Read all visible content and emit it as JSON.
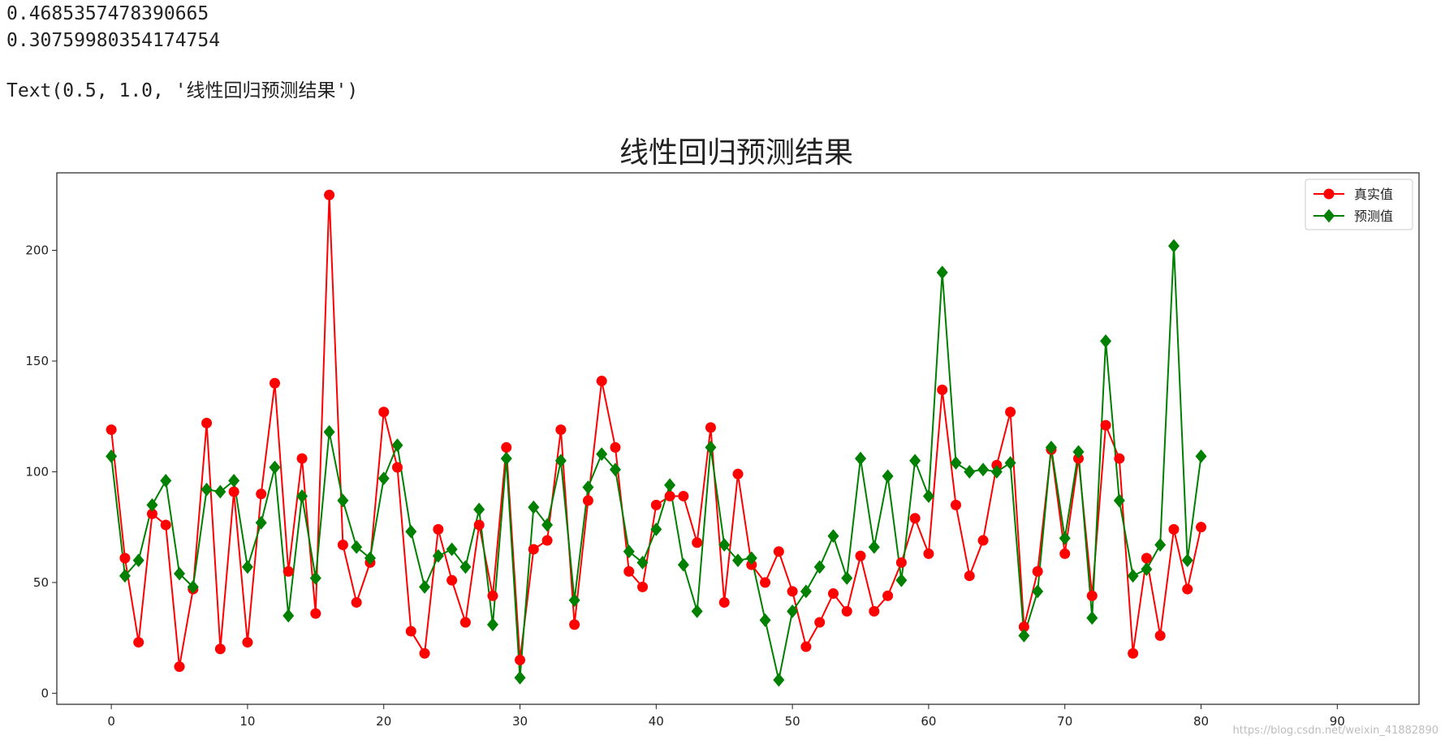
{
  "output": {
    "line1": "0.4685357478390665",
    "line2": "0.30759980354174754",
    "line3": "Text(0.5, 1.0, '线性回归预测结果')"
  },
  "watermark": "https://blog.csdn.net/weixin_41882890",
  "chart_data": {
    "type": "line",
    "title": "线性回归预测结果",
    "xlabel": "",
    "ylabel": "",
    "xlim": [
      -4,
      96
    ],
    "ylim": [
      -5,
      235
    ],
    "xticks": [
      0,
      10,
      20,
      30,
      40,
      50,
      60,
      70,
      80,
      90
    ],
    "yticks": [
      0,
      50,
      100,
      150,
      200
    ],
    "grid": false,
    "legend_position": "top-right",
    "series": [
      {
        "name": "真实值",
        "color": "#ff0000",
        "marker": "circle",
        "values": [
          119,
          61,
          23,
          81,
          76,
          12,
          47,
          122,
          20,
          91,
          23,
          90,
          140,
          55,
          106,
          36,
          225,
          67,
          41,
          59,
          127,
          102,
          28,
          18,
          74,
          51,
          32,
          76,
          44,
          111,
          15,
          65,
          69,
          119,
          31,
          87,
          141,
          111,
          55,
          48,
          85,
          89,
          89,
          68,
          120,
          41,
          99,
          58,
          50,
          64,
          46,
          21,
          32,
          45,
          37,
          62,
          37,
          44,
          59,
          79,
          63,
          137,
          85,
          53,
          69,
          103,
          127,
          30,
          55,
          110,
          63,
          106,
          44,
          121,
          106,
          18,
          61,
          26,
          74,
          47,
          75
        ]
      },
      {
        "name": "预测值",
        "color": "#008000",
        "marker": "diamond",
        "values": [
          107,
          53,
          60,
          85,
          96,
          54,
          48,
          92,
          91,
          96,
          57,
          77,
          102,
          35,
          89,
          52,
          118,
          87,
          66,
          61,
          97,
          112,
          73,
          48,
          62,
          65,
          57,
          83,
          31,
          106,
          7,
          84,
          76,
          105,
          42,
          93,
          108,
          101,
          64,
          59,
          74,
          94,
          58,
          37,
          111,
          67,
          60,
          61,
          33,
          6,
          37,
          46,
          57,
          71,
          52,
          106,
          66,
          98,
          51,
          105,
          89,
          190,
          104,
          100,
          101,
          100,
          104,
          26,
          46,
          111,
          70,
          109,
          34,
          159,
          87,
          53,
          56,
          67,
          202,
          60,
          107
        ]
      }
    ]
  }
}
